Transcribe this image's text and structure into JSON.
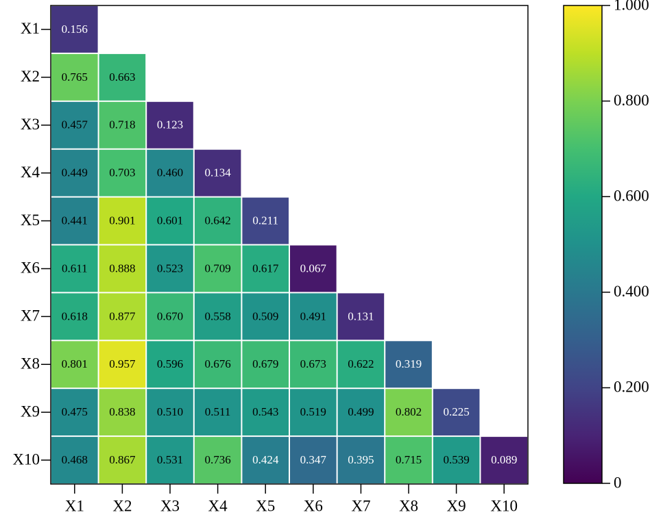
{
  "chart_data": {
    "type": "heatmap",
    "x_categories": [
      "X1",
      "X2",
      "X3",
      "X4",
      "X5",
      "X6",
      "X7",
      "X8",
      "X9",
      "X10"
    ],
    "y_categories": [
      "X1",
      "X2",
      "X3",
      "X4",
      "X5",
      "X6",
      "X7",
      "X8",
      "X9",
      "X10"
    ],
    "values": [
      [
        0.156,
        null,
        null,
        null,
        null,
        null,
        null,
        null,
        null,
        null
      ],
      [
        0.765,
        0.663,
        null,
        null,
        null,
        null,
        null,
        null,
        null,
        null
      ],
      [
        0.457,
        0.718,
        0.123,
        null,
        null,
        null,
        null,
        null,
        null,
        null
      ],
      [
        0.449,
        0.703,
        0.46,
        0.134,
        null,
        null,
        null,
        null,
        null,
        null
      ],
      [
        0.441,
        0.901,
        0.601,
        0.642,
        0.211,
        null,
        null,
        null,
        null,
        null
      ],
      [
        0.611,
        0.888,
        0.523,
        0.709,
        0.617,
        0.067,
        null,
        null,
        null,
        null
      ],
      [
        0.618,
        0.877,
        0.67,
        0.558,
        0.509,
        0.491,
        0.131,
        null,
        null,
        null
      ],
      [
        0.801,
        0.957,
        0.596,
        0.676,
        0.679,
        0.673,
        0.622,
        0.319,
        null,
        null
      ],
      [
        0.475,
        0.838,
        0.51,
        0.511,
        0.543,
        0.519,
        0.499,
        0.802,
        0.225,
        null
      ],
      [
        0.468,
        0.867,
        0.531,
        0.736,
        0.424,
        0.347,
        0.395,
        0.715,
        0.539,
        0.089
      ]
    ],
    "value_labels": [
      [
        "0.156",
        null,
        null,
        null,
        null,
        null,
        null,
        null,
        null,
        null
      ],
      [
        "0.765",
        "0.663",
        null,
        null,
        null,
        null,
        null,
        null,
        null,
        null
      ],
      [
        "0.457",
        "0.718",
        "0.123",
        null,
        null,
        null,
        null,
        null,
        null,
        null
      ],
      [
        "0.449",
        "0.703",
        "0.460",
        "0.134",
        null,
        null,
        null,
        null,
        null,
        null
      ],
      [
        "0.441",
        "0.901",
        "0.601",
        "0.642",
        "0.211",
        null,
        null,
        null,
        null,
        null
      ],
      [
        "0.611",
        "0.888",
        "0.523",
        "0.709",
        "0.617",
        "0.067",
        null,
        null,
        null,
        null
      ],
      [
        "0.618",
        "0.877",
        "0.670",
        "0.558",
        "0.509",
        "0.491",
        "0.131",
        null,
        null,
        null
      ],
      [
        "0.801",
        "0.957",
        "0.596",
        "0.676",
        "0.679",
        "0.673",
        "0.622",
        "0.319",
        null,
        null
      ],
      [
        "0.475",
        "0.838",
        "0.510",
        "0.511",
        "0.543",
        "0.519",
        "0.499",
        "0.802",
        "0.225",
        null
      ],
      [
        "0.468",
        "0.867",
        "0.531",
        "0.736",
        "0.424",
        "0.347",
        "0.395",
        "0.715",
        "0.539",
        "0.089"
      ]
    ],
    "colormap": "viridis",
    "zlim": [
      0,
      1
    ],
    "zticks": [
      0,
      {
        "value": 0.2,
        "label": "0.200"
      },
      {
        "value": 0.4,
        "label": "0.400"
      },
      {
        "value": 0.6,
        "label": "0.600"
      },
      {
        "value": 0.8,
        "label": "0.800"
      },
      {
        "value": 1,
        "label": "1.000"
      }
    ]
  }
}
